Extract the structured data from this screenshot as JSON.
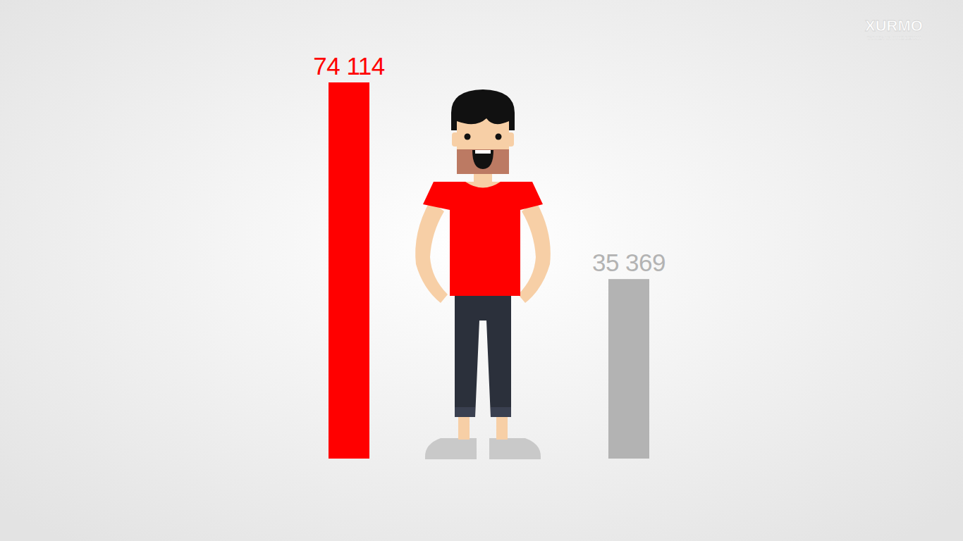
{
  "chart_data": {
    "type": "bar",
    "categories": [
      null,
      null
    ],
    "values": [
      74114,
      35369
    ],
    "value_labels": [
      "74 114",
      "35 369"
    ],
    "colors": [
      "#ff0000",
      "#b3b3b3"
    ],
    "ylim": [
      0,
      74114
    ],
    "data_labels": true,
    "tick_labels": false,
    "grid": false,
    "annotations": [
      "XURMO",
      "TAROZA VA OVOZ BERISH"
    ]
  }
}
